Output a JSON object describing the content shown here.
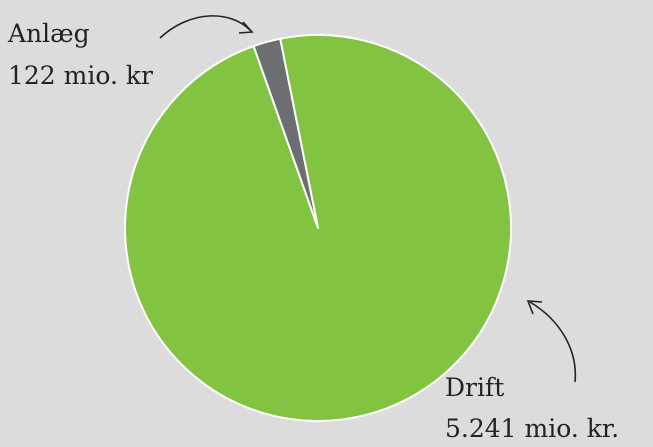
{
  "chart_data": {
    "type": "pie",
    "categories": [
      "Anlæg",
      "Drift"
    ],
    "values": [
      122,
      5241
    ],
    "value_labels": [
      "122 mio. kr",
      "5.241 mio. kr."
    ],
    "colors": [
      "#6d6e71",
      "#82c341"
    ]
  }
}
